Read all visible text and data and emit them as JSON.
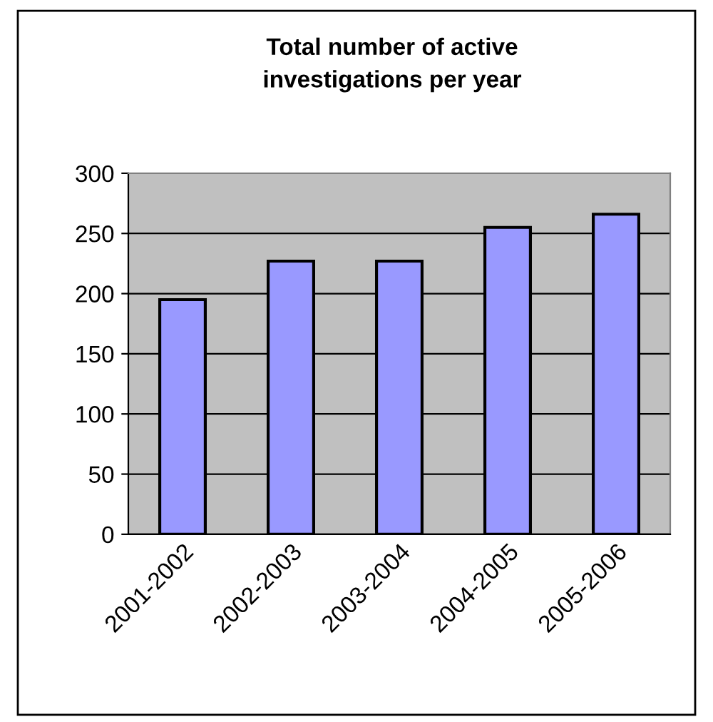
{
  "chart_data": {
    "type": "bar",
    "title": "Total number of active\ninvestigations per year",
    "categories": [
      "2001-2002",
      "2002-2003",
      "2003-2004",
      "2004-2005",
      "2005-2006"
    ],
    "values": [
      195,
      227,
      227,
      255,
      266
    ],
    "color": "#9999ff",
    "ylim": [
      0,
      300
    ],
    "yticks": [
      0,
      50,
      100,
      150,
      200,
      250,
      300
    ],
    "grid": "y"
  }
}
